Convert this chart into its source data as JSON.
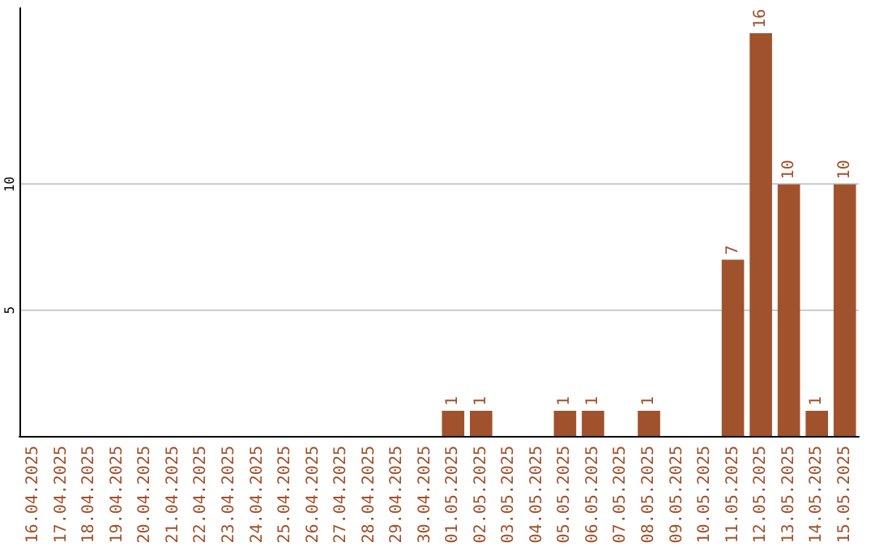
{
  "chart_data": {
    "type": "bar",
    "categories": [
      "16.04.2025",
      "17.04.2025",
      "18.04.2025",
      "19.04.2025",
      "20.04.2025",
      "21.04.2025",
      "22.04.2025",
      "23.04.2025",
      "24.04.2025",
      "25.04.2025",
      "26.04.2025",
      "27.04.2025",
      "28.04.2025",
      "29.04.2025",
      "30.04.2025",
      "01.05.2025",
      "02.05.2025",
      "03.05.2025",
      "04.05.2025",
      "05.05.2025",
      "06.05.2025",
      "07.05.2025",
      "08.05.2025",
      "09.05.2025",
      "10.05.2025",
      "11.05.2025",
      "12.05.2025",
      "13.05.2025",
      "14.05.2025",
      "15.05.2025"
    ],
    "values": [
      0,
      0,
      0,
      0,
      0,
      0,
      0,
      0,
      0,
      0,
      0,
      0,
      0,
      0,
      0,
      1,
      1,
      0,
      0,
      1,
      1,
      0,
      1,
      0,
      0,
      7,
      16,
      10,
      1,
      10
    ],
    "value_labels": [
      null,
      null,
      null,
      null,
      null,
      null,
      null,
      null,
      null,
      null,
      null,
      null,
      null,
      null,
      null,
      "1",
      "1",
      null,
      null,
      "1",
      "1",
      null,
      "1",
      null,
      null,
      "7",
      "16",
      "10",
      "1",
      "10"
    ],
    "color": "#a0522d",
    "ylim": [
      0,
      17
    ],
    "yticks": [
      5,
      10
    ],
    "grid": "y"
  }
}
